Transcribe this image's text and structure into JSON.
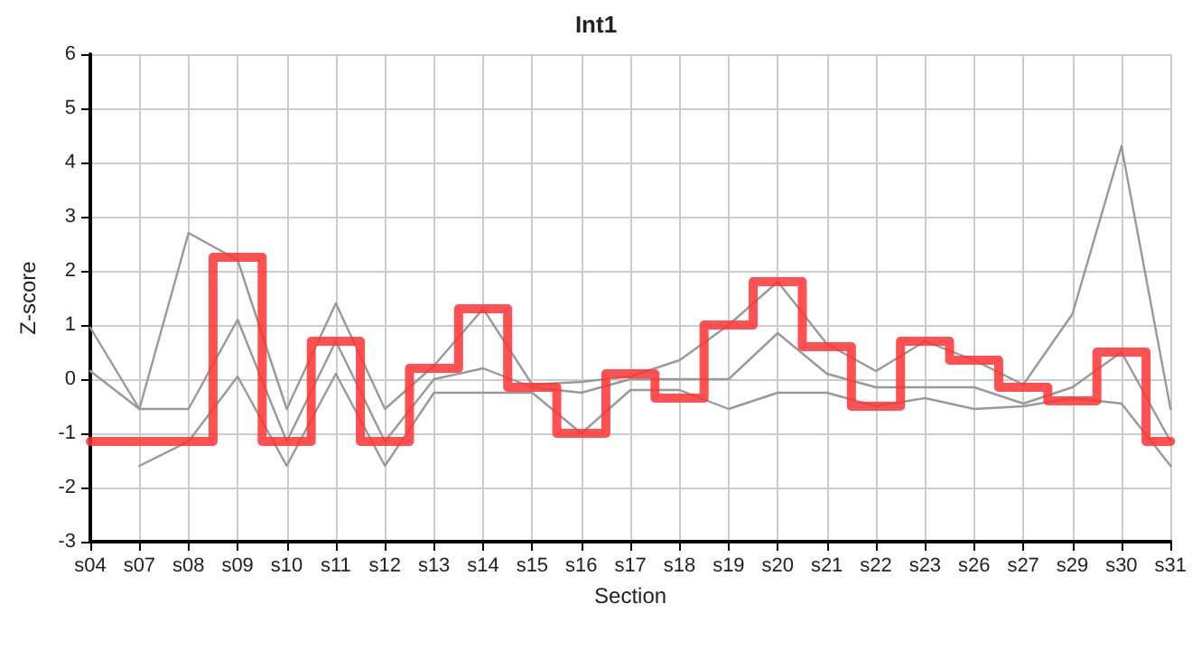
{
  "chart_data": {
    "type": "line",
    "title": "Int1",
    "xlabel": "Section",
    "ylabel": "Z-score",
    "categories": [
      "s04",
      "s07",
      "s08",
      "s09",
      "s10",
      "s11",
      "s12",
      "s13",
      "s14",
      "s15",
      "s16",
      "s17",
      "s18",
      "s19",
      "s20",
      "s21",
      "s22",
      "s23",
      "s26",
      "s27",
      "s29",
      "s30",
      "s31"
    ],
    "ylim": [
      -3,
      6
    ],
    "yticks": [
      -3,
      -2,
      -1,
      0,
      1,
      2,
      3,
      4,
      5,
      6
    ],
    "grid": true,
    "marker": "none",
    "series": [
      {
        "color": "#999999",
        "values": [
          0.95,
          -0.55,
          2.7,
          2.2,
          -0.55,
          1.4,
          -0.55,
          0.25,
          1.3,
          -0.1,
          -0.05,
          0.05,
          0.35,
          1.0,
          1.8,
          0.65,
          0.15,
          0.7,
          0.35,
          -0.1,
          1.2,
          4.3,
          -0.55
        ]
      },
      {
        "color": "#999999",
        "values": [
          0.15,
          -0.55,
          -0.55,
          1.1,
          -1.15,
          0.7,
          -1.15,
          0,
          0.2,
          -0.15,
          -0.25,
          0,
          0,
          0,
          0.85,
          0.1,
          -0.15,
          -0.15,
          -0.15,
          -0.45,
          -0.15,
          0.5,
          -1.15
        ]
      },
      {
        "color": "#999999",
        "values": [
          null,
          -1.6,
          -1.15,
          0.05,
          -1.6,
          0.1,
          -1.6,
          -0.25,
          -0.25,
          -0.25,
          -1.0,
          -0.2,
          -0.2,
          -0.55,
          -0.25,
          -0.25,
          -0.5,
          -0.35,
          -0.55,
          -0.5,
          -0.35,
          -0.45,
          -1.6
        ]
      },
      {
        "type": "step",
        "color": "#ff3333",
        "values": [
          -1.15,
          -1.15,
          -1.15,
          2.25,
          -1.15,
          0.7,
          -1.15,
          0.2,
          1.3,
          -0.15,
          -1.0,
          0.1,
          -0.35,
          1.0,
          1.8,
          0.6,
          -0.5,
          0.7,
          0.35,
          -0.15,
          -0.4,
          0.5,
          -1.15
        ]
      }
    ]
  }
}
